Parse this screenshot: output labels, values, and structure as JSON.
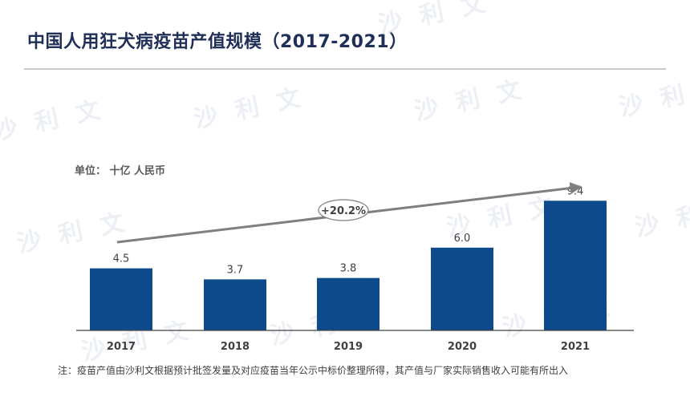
{
  "header": {
    "title": "中国人用狂犬病疫苗产值规模（2017-2021）"
  },
  "chart_data": {
    "type": "bar",
    "unit_label": "单位：  十亿 人民币",
    "categories": [
      "2017",
      "2018",
      "2019",
      "2020",
      "2021"
    ],
    "values": [
      4.5,
      3.7,
      3.8,
      6.0,
      9.4
    ],
    "value_labels": [
      "4.5",
      "3.7",
      "3.8",
      "6.0",
      "9.4"
    ],
    "ylim": [
      0,
      10
    ],
    "growth_annotation": "+20.2%",
    "bar_color": "#0d4a8c",
    "arrow_color": "#7f7f7f"
  },
  "footnote": "注：疫苗产值由沙利文根据预计批签发量及对应疫苗当年公示中标价整理所得，其产值与厂家实际销售收入可能有所出入",
  "watermark": "沙 利 文"
}
